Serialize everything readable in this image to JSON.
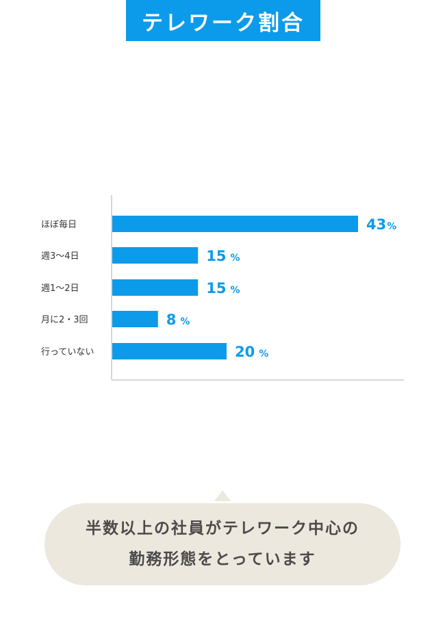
{
  "header": {
    "title": "テレワーク割合"
  },
  "colors": {
    "accent": "#0b9bea",
    "bubble_bg": "#ede8de",
    "axis": "#d6d6d6"
  },
  "chart_data": {
    "type": "bar",
    "orientation": "horizontal",
    "categories": [
      "ほぼ毎日",
      "週3〜4日",
      "週1〜2日",
      "月に2・3回",
      "行っていない"
    ],
    "values": [
      43,
      15,
      15,
      8,
      20
    ],
    "value_unit": "%",
    "title": "",
    "xlabel": "",
    "ylabel": "",
    "grid": false,
    "legend": "none"
  },
  "summary": {
    "line1": "半数以上の社員がテレワーク中心の",
    "line2": "勤務形態をとっています"
  }
}
